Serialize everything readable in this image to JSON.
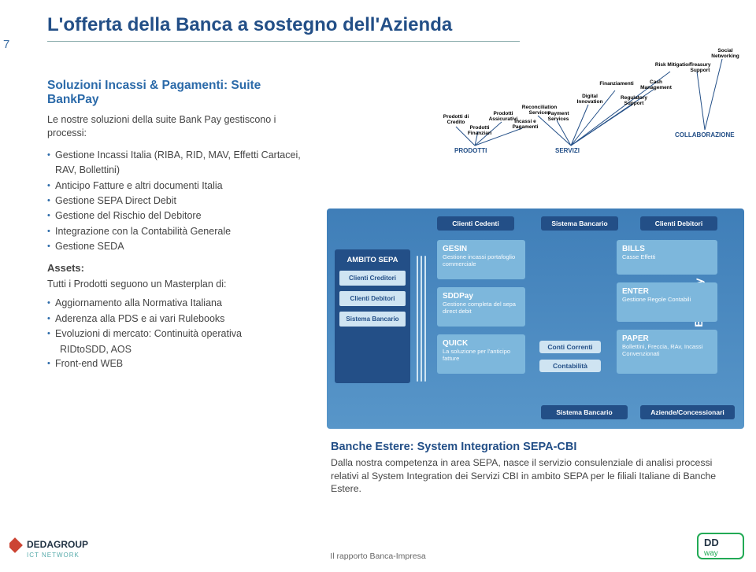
{
  "page_number": "7",
  "title": "L'offerta della Banca a sostegno dell'Azienda",
  "left": {
    "subhead": "Soluzioni Incassi & Pagamenti: Suite BankPay",
    "intro1": "Le nostre soluzioni    della suite Bank Pay gestiscono i",
    "intro2": "processi:",
    "bullets_a": [
      "Gestione Incassi Italia (RIBA, RID, MAV, Effetti Cartacei, RAV, Bollettini)",
      "Anticipo Fatture e altri documenti Italia",
      "Gestione SEPA Direct Debit",
      "Gestione del Rischio del Debitore",
      "Integrazione con la Contabilità Generale",
      "Gestione SEDA"
    ],
    "assets_label": "Assets:",
    "master": "Tutti i Prodotti seguono un Masterplan di:",
    "bullets_b": [
      "Aggiornamento alla Normativa Italiana",
      "Aderenza alla PDS e ai vari Rulebooks",
      "Evoluzioni di mercato: Continuità operativa"
    ],
    "indent": "RIDtoSDD, AOS",
    "bullets_c": [
      "Front-end WEB"
    ]
  },
  "tree": {
    "root_prodotti": "PRODOTTI",
    "root_servizi": "SERVIZI",
    "root_collab": "COLLABORAZIONE",
    "leaves_prodotti": [
      "Prodotti di Credito",
      "Prodotti Finanziari",
      "Prodotti Assicurativi",
      "Incassi e Pagamenti"
    ],
    "leaves_servizi": [
      "Reconciliation Services",
      "Payment Services",
      "Digital Innovation",
      "Finanziamenti",
      "Regulatory Support",
      "Cash Management",
      "Risk Mitigation"
    ],
    "leaves_collab": [
      "Treasury Support",
      "Social Networking"
    ]
  },
  "diagram": {
    "side_label": "Suite BankPay",
    "top_chips": [
      "Clienti Cedenti",
      "Sistema Bancario",
      "Clienti Debitori"
    ],
    "bottom_chips": [
      "Sistema Bancario",
      "Aziende/Concessionari"
    ],
    "ambito_title": "AMBITO SEPA",
    "ambito_chips": [
      "Clienti Creditori",
      "Clienti Debitori",
      "Sistema Bancario"
    ],
    "col1": [
      {
        "t": "GESIN",
        "s": "Gestione incassi portafoglio commerciale"
      },
      {
        "t": "SDDPay",
        "s": "Gestione completa del sepa direct debit"
      },
      {
        "t": "QUICK",
        "s": "La soluzione per l'anticipo fatture"
      }
    ],
    "col2_small": [
      "Conti Correnti",
      "Contabilità"
    ],
    "col3": [
      {
        "t": "BILLS",
        "s": "Casse Effetti"
      },
      {
        "t": "ENTER",
        "s": "Gestione Regole Contabili"
      },
      {
        "t": "PAPER",
        "s": "Bollettini, Freccia, RAv, Incassi Convenzionati"
      }
    ]
  },
  "bottom": {
    "head": "Banche Estere: System Integration SEPA-CBI",
    "para": "Dalla nostra competenza in area SEPA, nasce il servizio consulenziale di analisi processi relativi al System Integration dei Servizi CBI in ambito SEPA per le filiali Italiane di Banche Estere."
  },
  "footer": "Il rapporto Banca-Impresa",
  "logos": {
    "left_top": "DEDAGROUP",
    "left_sub": "ICT NETWORK",
    "right": "DDway"
  }
}
